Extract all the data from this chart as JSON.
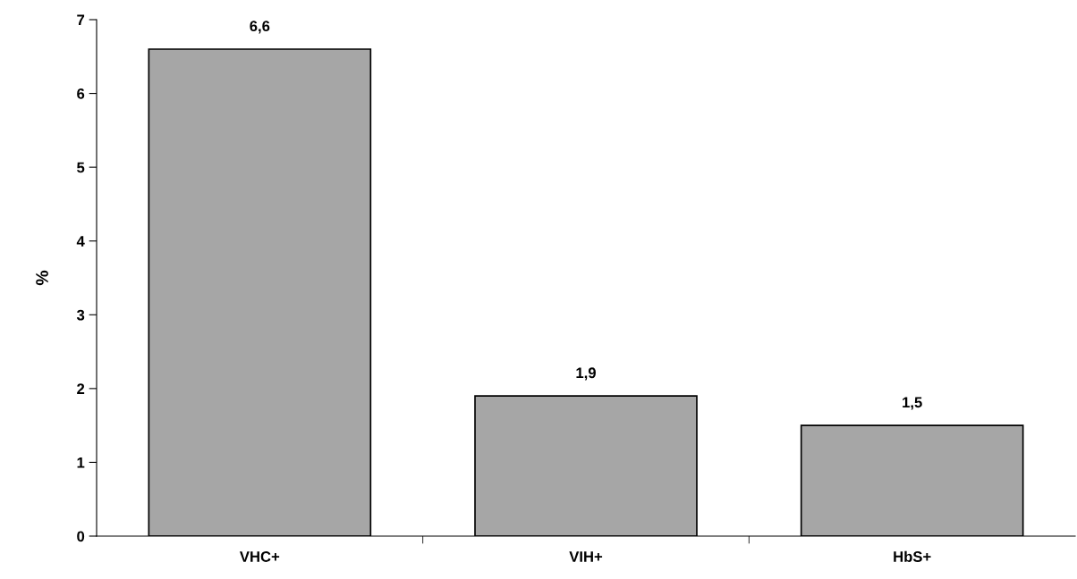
{
  "chart_data": {
    "type": "bar",
    "ylabel": "%",
    "categories": [
      "VHC+",
      "VIH+",
      "HbS+"
    ],
    "values": [
      6.6,
      1.9,
      1.5
    ],
    "value_labels": [
      "6,6",
      "1,9",
      "1,5"
    ],
    "color": "#a6a6a6",
    "ylim": [
      0,
      7
    ],
    "yticks": [
      0,
      1,
      2,
      3,
      4,
      5,
      6,
      7
    ],
    "grid": false
  }
}
